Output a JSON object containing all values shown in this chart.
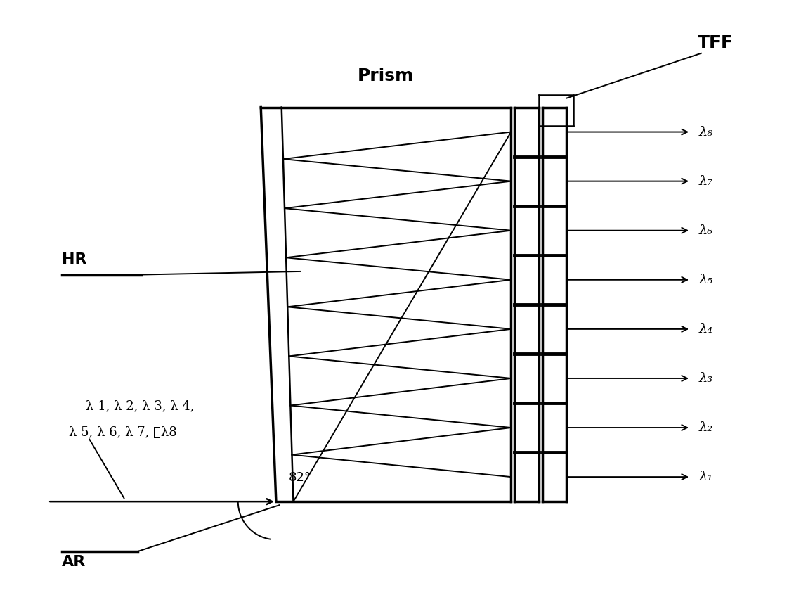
{
  "bg_color": "#ffffff",
  "line_color": "#000000",
  "fig_width": 11.3,
  "fig_height": 8.46,
  "dpi": 100,
  "tff_label": "TFF",
  "prism_label": "Prism",
  "hr_label": "HR",
  "ar_label": "AR",
  "angle_label": "82°",
  "input_label_line1": "λ 1, λ 2, λ 3, λ 4,",
  "input_label_line2": "λ 5, λ 6, λ 7, 和λ8",
  "lambda_labels": [
    "λ₁",
    "λ₂",
    "λ₃",
    "λ₄",
    "λ₅",
    "λ₆",
    "λ₇",
    "λ₈"
  ],
  "n_channels": 8,
  "lw_thick": 2.5,
  "lw_med": 1.8,
  "lw_thin": 1.4
}
